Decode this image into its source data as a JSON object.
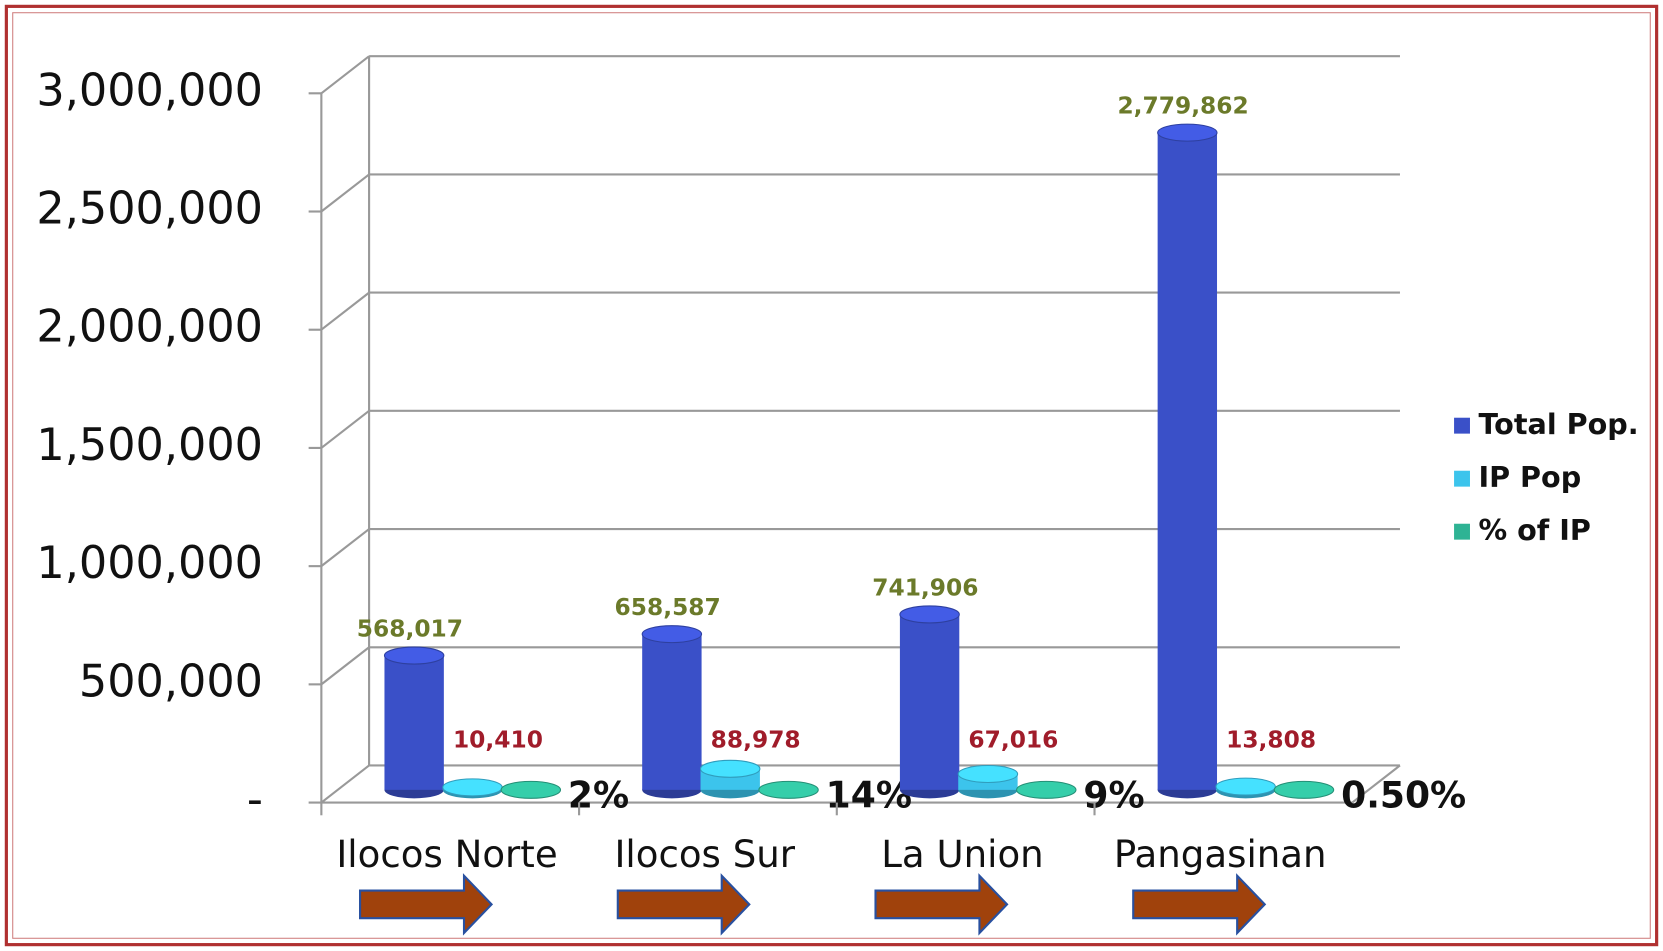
{
  "chart_data": {
    "type": "bar3d",
    "categories": [
      "Ilocos Norte",
      "Ilocos Sur",
      "La Union",
      "Pangasinan"
    ],
    "series": [
      {
        "name": "Total Pop.",
        "color": "#3a50c8",
        "label_color": "#6b7a2a",
        "values": [
          568017,
          658587,
          741906,
          2779862
        ],
        "value_labels": [
          "568,017",
          "658,587",
          "741,906",
          "2,779,862"
        ]
      },
      {
        "name": "IP Pop",
        "color": "#3cc4ec",
        "label_color": "#a01c2a",
        "values": [
          10410,
          88978,
          67016,
          13808
        ],
        "value_labels": [
          "10,410",
          "88,978",
          "67,016",
          "13,808"
        ]
      },
      {
        "name": "% of IP",
        "color": "#2eb394",
        "label_color": "#111111",
        "values": [
          2,
          14,
          9,
          0.5
        ],
        "value_labels": [
          "2%",
          "14%",
          "9%",
          "0.50%"
        ]
      }
    ],
    "ylim": [
      0,
      3000000
    ],
    "yticks": [
      {
        "value": 0,
        "label": "-"
      },
      {
        "value": 500000,
        "label": "500,000"
      },
      {
        "value": 1000000,
        "label": "1,000,000"
      },
      {
        "value": 1500000,
        "label": "1,500,000"
      },
      {
        "value": 2000000,
        "label": "2,000,000"
      },
      {
        "value": 2500000,
        "label": "2,500,000"
      },
      {
        "value": 3000000,
        "label": "3,000,000"
      }
    ],
    "grid": true,
    "legend": "right"
  }
}
